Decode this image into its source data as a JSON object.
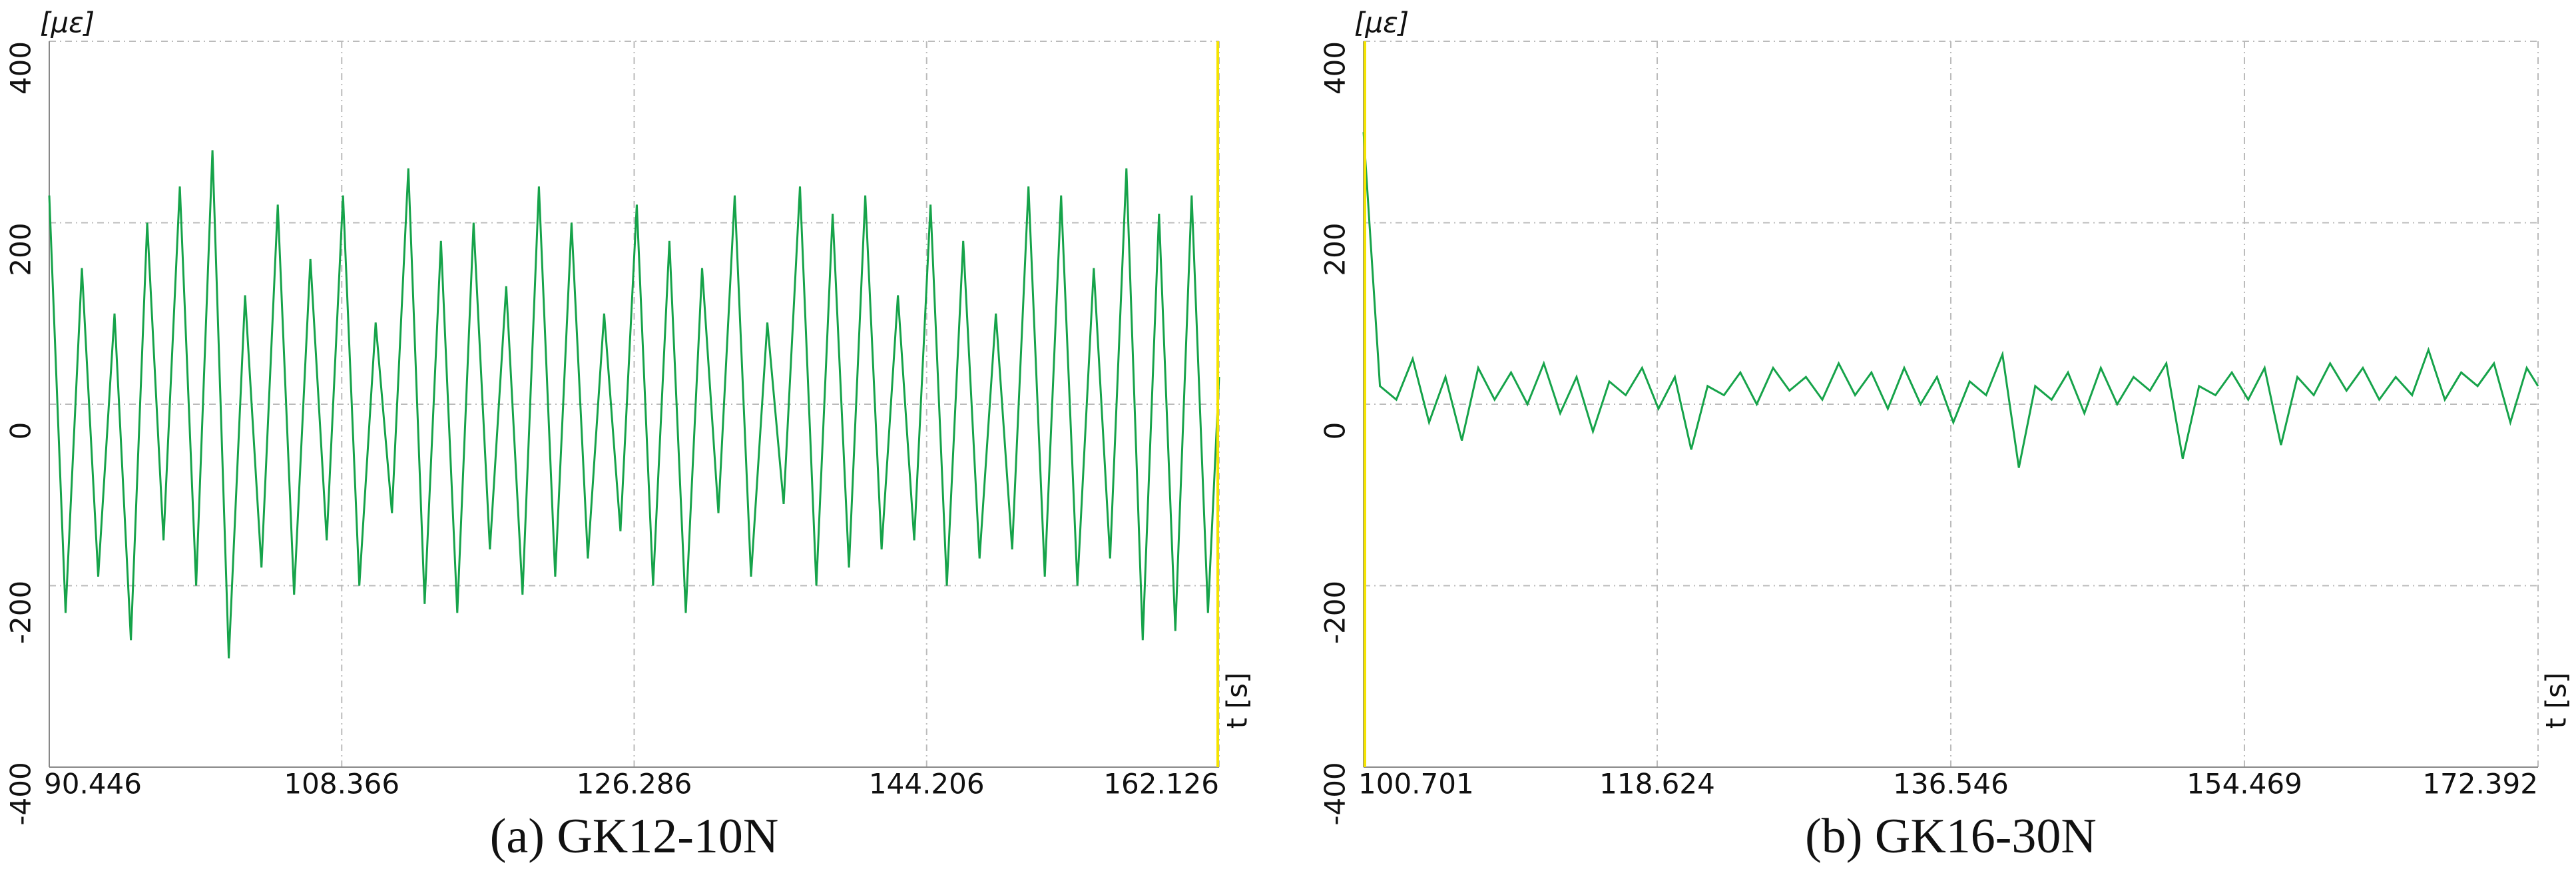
{
  "chart_data": [
    {
      "type": "line",
      "caption": "(a) GK12-10N",
      "y_label": "[με]",
      "x_label": "t [s]",
      "xlim": [
        90.446,
        162.126
      ],
      "xticks": [
        90.446,
        108.366,
        126.286,
        144.206,
        162.126
      ],
      "ylim": [
        -400,
        400
      ],
      "yticks": [
        -400,
        -200,
        0,
        200,
        400
      ],
      "grid": true,
      "x": [
        90.446,
        91.446,
        92.446,
        93.446,
        94.446,
        95.446,
        96.446,
        97.446,
        98.446,
        99.446,
        100.446,
        101.446,
        102.446,
        103.446,
        104.446,
        105.446,
        106.446,
        107.446,
        108.446,
        109.446,
        110.446,
        111.446,
        112.446,
        113.446,
        114.446,
        115.446,
        116.446,
        117.446,
        118.446,
        119.446,
        120.446,
        121.446,
        122.446,
        123.446,
        124.446,
        125.446,
        126.446,
        127.446,
        128.446,
        129.446,
        130.446,
        131.446,
        132.446,
        133.446,
        134.446,
        135.446,
        136.446,
        137.446,
        138.446,
        139.446,
        140.446,
        141.446,
        142.446,
        143.446,
        144.446,
        145.446,
        146.446,
        147.446,
        148.446,
        149.446,
        150.446,
        151.446,
        152.446,
        153.446,
        154.446,
        155.446,
        156.446,
        157.446,
        158.446,
        159.446,
        160.446,
        161.446,
        162.126
      ],
      "series": [
        {
          "color": "#16a34a",
          "values": [
            230,
            -230,
            150,
            -190,
            100,
            -260,
            200,
            -150,
            240,
            -200,
            280,
            -280,
            120,
            -180,
            220,
            -210,
            160,
            -150,
            230,
            -200,
            90,
            -120,
            260,
            -220,
            180,
            -230,
            200,
            -160,
            130,
            -210,
            240,
            -190,
            200,
            -170,
            100,
            -140,
            220,
            -200,
            180,
            -230,
            150,
            -120,
            230,
            -190,
            90,
            -110,
            240,
            -200,
            210,
            -180,
            230,
            -160,
            120,
            -150,
            220,
            -200,
            180,
            -170,
            100,
            -160,
            240,
            -190,
            230,
            -200,
            150,
            -170,
            260,
            -260,
            210,
            -250,
            230,
            -230,
            30
          ]
        }
      ]
    },
    {
      "type": "line",
      "caption": "(b) GK16-30N",
      "y_label": "[με]",
      "x_label": "t [s]",
      "xlim": [
        100.701,
        172.392
      ],
      "xticks": [
        100.701,
        118.624,
        136.546,
        154.469,
        172.392
      ],
      "ylim": [
        -400,
        400
      ],
      "yticks": [
        -400,
        -200,
        0,
        200,
        400
      ],
      "grid": true,
      "x": [
        100.701,
        101.701,
        102.701,
        103.701,
        104.701,
        105.701,
        106.701,
        107.701,
        108.701,
        109.701,
        110.701,
        111.701,
        112.701,
        113.701,
        114.701,
        115.701,
        116.701,
        117.701,
        118.701,
        119.701,
        120.701,
        121.701,
        122.701,
        123.701,
        124.701,
        125.701,
        126.701,
        127.701,
        128.701,
        129.701,
        130.701,
        131.701,
        132.701,
        133.701,
        134.701,
        135.701,
        136.701,
        137.701,
        138.701,
        139.701,
        140.701,
        141.701,
        142.701,
        143.701,
        144.701,
        145.701,
        146.701,
        147.701,
        148.701,
        149.701,
        150.701,
        151.701,
        152.701,
        153.701,
        154.701,
        155.701,
        156.701,
        157.701,
        158.701,
        159.701,
        160.701,
        161.701,
        162.701,
        163.701,
        164.701,
        165.701,
        166.701,
        167.701,
        168.701,
        169.701,
        170.701,
        171.701,
        172.392
      ],
      "series": [
        {
          "color": "#16a34a",
          "values": [
            300,
            20,
            5,
            50,
            -20,
            30,
            -40,
            40,
            5,
            35,
            0,
            45,
            -10,
            30,
            -30,
            25,
            10,
            40,
            -5,
            30,
            -50,
            20,
            10,
            35,
            0,
            40,
            15,
            30,
            5,
            45,
            10,
            35,
            -5,
            40,
            0,
            30,
            -20,
            25,
            10,
            55,
            -70,
            20,
            5,
            35,
            -10,
            40,
            0,
            30,
            15,
            45,
            -60,
            20,
            10,
            35,
            5,
            40,
            -45,
            30,
            10,
            45,
            15,
            40,
            5,
            30,
            10,
            60,
            5,
            35,
            20,
            45,
            -20,
            40,
            20
          ]
        }
      ]
    }
  ]
}
